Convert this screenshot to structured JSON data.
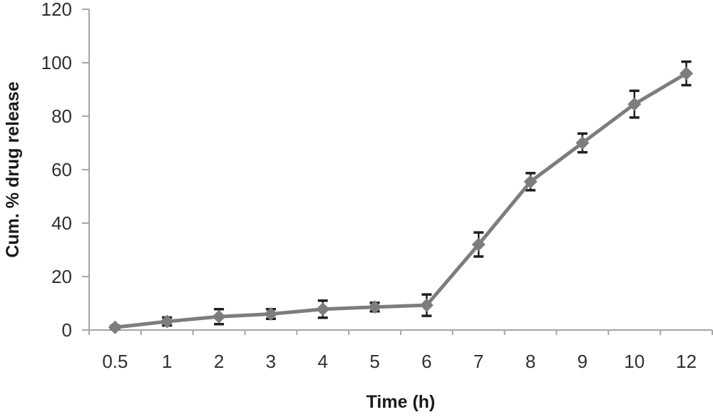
{
  "chart_data": {
    "type": "line",
    "title": "",
    "xlabel": "Time (h)",
    "ylabel": "Cum. % drug release",
    "categories": [
      "0.5",
      "1",
      "2",
      "3",
      "4",
      "5",
      "6",
      "7",
      "8",
      "9",
      "10",
      "12"
    ],
    "series": [
      {
        "name": "Cum. % drug release",
        "values": [
          1,
          3.2,
          5,
          6,
          7.8,
          8.6,
          9.3,
          32,
          55.5,
          70,
          84.5,
          96
        ],
        "errors": [
          0.6,
          1.5,
          2.8,
          1.8,
          3.2,
          1.6,
          4,
          4.5,
          3.2,
          3.5,
          5,
          4.4
        ]
      }
    ],
    "ylim": [
      0,
      120
    ],
    "yticks": [
      0,
      20,
      40,
      60,
      80,
      100,
      120
    ],
    "grid": false,
    "legend": "none",
    "marker": "diamond",
    "colors": {
      "line": "#7d7d7d",
      "marker": "#7d7d7d",
      "error_bar": "#1f1f1f",
      "axis": "#a6a6a6",
      "tick_label": "#303030",
      "background": "#ffffff"
    }
  }
}
